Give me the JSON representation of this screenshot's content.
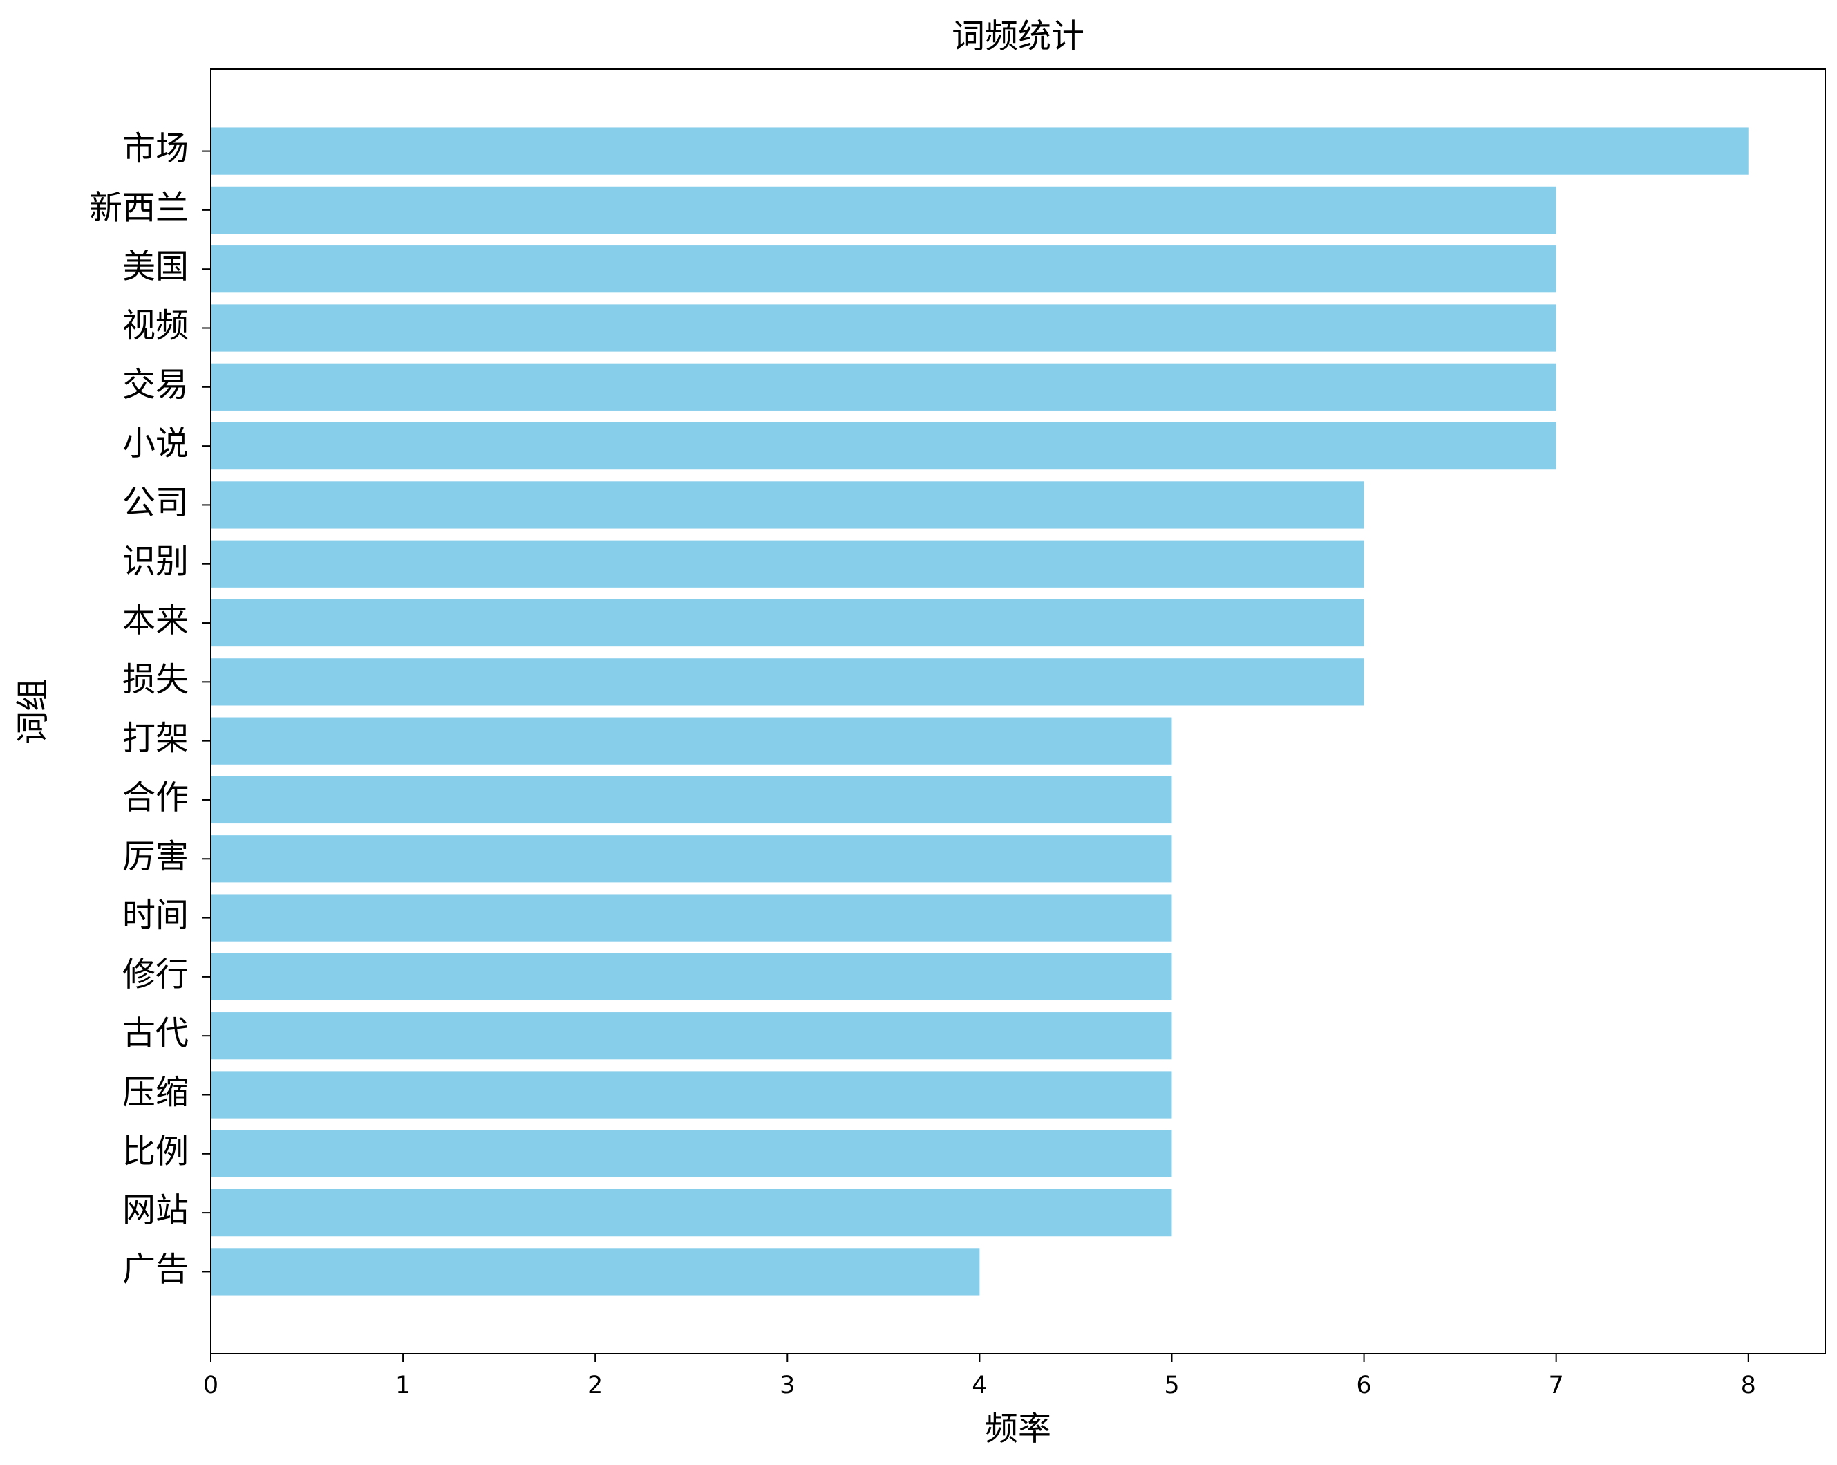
{
  "chart_data": {
    "type": "barh",
    "title": "词频统计",
    "xlabel": "频率",
    "ylabel": "词组",
    "categories": [
      "市场",
      "新西兰",
      "美国",
      "视频",
      "交易",
      "小说",
      "公司",
      "识别",
      "本来",
      "损失",
      "打架",
      "合作",
      "厉害",
      "时间",
      "修行",
      "古代",
      "压缩",
      "比例",
      "网站",
      "广告"
    ],
    "values": [
      8,
      7,
      7,
      7,
      7,
      7,
      6,
      6,
      6,
      6,
      5,
      5,
      5,
      5,
      5,
      5,
      5,
      5,
      5,
      4
    ],
    "color": "#87ceeb",
    "xlim": [
      0,
      8.4
    ],
    "xticks": [
      0,
      1,
      2,
      3,
      4,
      5,
      6,
      7,
      8
    ],
    "grid": false
  }
}
